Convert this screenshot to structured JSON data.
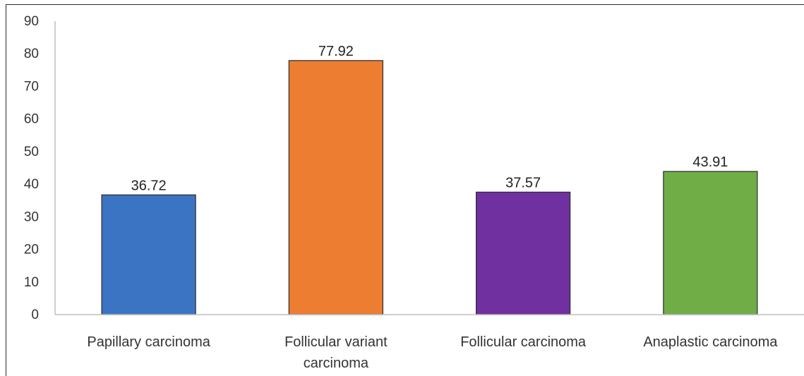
{
  "chart_data": {
    "type": "bar",
    "title": "",
    "xlabel": "",
    "ylabel": "",
    "ylim": [
      0,
      90
    ],
    "yticks": [
      0,
      10,
      20,
      30,
      40,
      50,
      60,
      70,
      80,
      90
    ],
    "grid": false,
    "legend": "none",
    "categories": [
      [
        "Papillary carcinoma"
      ],
      [
        "Follicular variant",
        "carcinoma"
      ],
      [
        "Follicular carcinoma"
      ],
      [
        "Anaplastic carcinoma"
      ]
    ],
    "values": [
      36.72,
      77.92,
      37.57,
      43.91
    ],
    "value_labels": [
      "36.72",
      "77.92",
      "37.57",
      "43.91"
    ],
    "colors": [
      "#3c74c4",
      "#ed7d31",
      "#7030a0",
      "#70ad47"
    ]
  }
}
